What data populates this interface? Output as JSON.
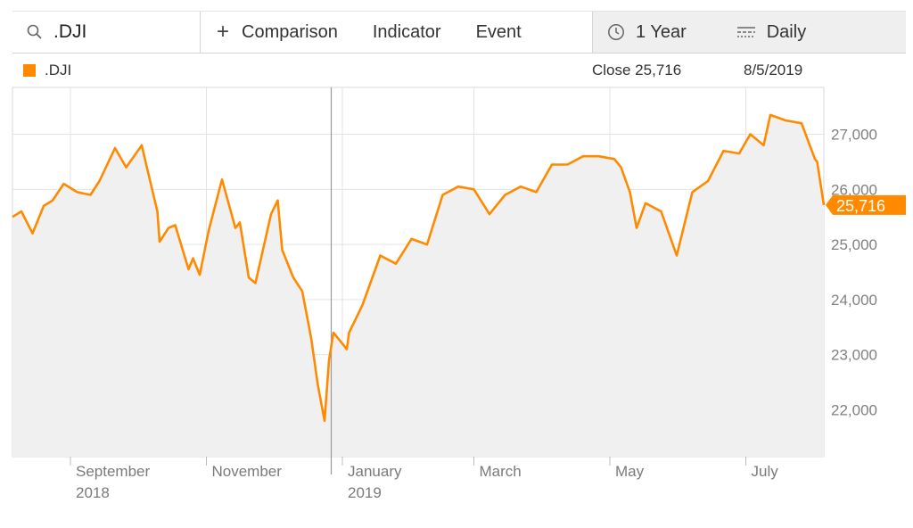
{
  "toolbar": {
    "symbol": ".DJI",
    "comparison": "Comparison",
    "indicator": "Indicator",
    "event": "Event",
    "range": "1 Year",
    "interval": "Daily",
    "icons": {
      "search": "search-icon",
      "add": "plus-icon",
      "clock": "clock-icon",
      "interval": "candles-icon"
    }
  },
  "legend": {
    "symbol": ".DJI",
    "close": "Close 25,716",
    "date": "8/5/2019",
    "color": "#ff8a00"
  },
  "chart_data": {
    "type": "area",
    "series": [
      {
        "name": ".DJI",
        "color": "#ff8a00",
        "last_label": "25,716",
        "x": [
          "2018-08-06",
          "2018-08-10",
          "2018-08-15",
          "2018-08-20",
          "2018-08-24",
          "2018-08-29",
          "2018-09-04",
          "2018-09-10",
          "2018-09-14",
          "2018-09-21",
          "2018-09-26",
          "2018-10-03",
          "2018-10-05",
          "2018-10-10",
          "2018-10-11",
          "2018-10-15",
          "2018-10-18",
          "2018-10-24",
          "2018-10-26",
          "2018-10-29",
          "2018-11-02",
          "2018-11-08",
          "2018-11-14",
          "2018-11-16",
          "2018-11-20",
          "2018-11-23",
          "2018-11-30",
          "2018-12-03",
          "2018-12-05",
          "2018-12-10",
          "2018-12-14",
          "2018-12-18",
          "2018-12-21",
          "2018-12-24",
          "2018-12-26",
          "2018-12-28",
          "2019-01-03",
          "2019-01-04",
          "2019-01-10",
          "2019-01-18",
          "2019-01-25",
          "2019-02-01",
          "2019-02-08",
          "2019-02-15",
          "2019-02-22",
          "2019-03-01",
          "2019-03-08",
          "2019-03-15",
          "2019-03-22",
          "2019-03-29",
          "2019-04-05",
          "2019-04-12",
          "2019-04-19",
          "2019-04-26",
          "2019-05-03",
          "2019-05-06",
          "2019-05-10",
          "2019-05-13",
          "2019-05-17",
          "2019-05-24",
          "2019-05-31",
          "2019-06-07",
          "2019-06-14",
          "2019-06-21",
          "2019-06-28",
          "2019-07-03",
          "2019-07-09",
          "2019-07-12",
          "2019-07-19",
          "2019-07-26",
          "2019-08-01",
          "2019-08-02",
          "2019-08-05"
        ],
        "y": [
          25500,
          25600,
          25200,
          25700,
          25800,
          26100,
          25950,
          25900,
          26150,
          26750,
          26400,
          26800,
          26450,
          25600,
          25050,
          25300,
          25350,
          24550,
          24750,
          24450,
          25250,
          26180,
          25300,
          25400,
          24400,
          24300,
          25550,
          25800,
          24900,
          24400,
          24150,
          23300,
          22450,
          21800,
          22900,
          23400,
          23100,
          23400,
          23900,
          24800,
          24650,
          25100,
          25000,
          25900,
          26050,
          26000,
          25550,
          25900,
          26050,
          25950,
          26450,
          26450,
          26600,
          26600,
          26550,
          26400,
          25950,
          25300,
          25750,
          25600,
          24800,
          25950,
          26150,
          26700,
          26650,
          27000,
          26800,
          27350,
          27250,
          27200,
          26550,
          26500,
          25716
        ]
      }
    ],
    "xlabels": [
      {
        "line1": "September",
        "line2": "2018",
        "at": "2018-09-01"
      },
      {
        "line1": "November",
        "line2": "",
        "at": "2018-11-01"
      },
      {
        "line1": "January",
        "line2": "2019",
        "at": "2019-01-01"
      },
      {
        "line1": "March",
        "line2": "",
        "at": "2019-03-01"
      },
      {
        "line1": "May",
        "line2": "",
        "at": "2019-05-01"
      },
      {
        "line1": "July",
        "line2": "",
        "at": "2019-07-01"
      }
    ],
    "ylabels": [
      "22,000",
      "23,000",
      "24,000",
      "25,000",
      "26,000",
      "27,000"
    ],
    "yticks": [
      22000,
      23000,
      24000,
      25000,
      26000,
      27000
    ],
    "xlim": [
      "2018-08-06",
      "2019-08-05"
    ],
    "ylim": [
      21150,
      27850
    ],
    "crosshair_date": "2018-12-27",
    "grid": true,
    "colors": {
      "line": "#ff8a00",
      "fill": "#f0f0f0",
      "grid": "#e3e3e3",
      "crosshair": "#9a9a9a"
    }
  }
}
